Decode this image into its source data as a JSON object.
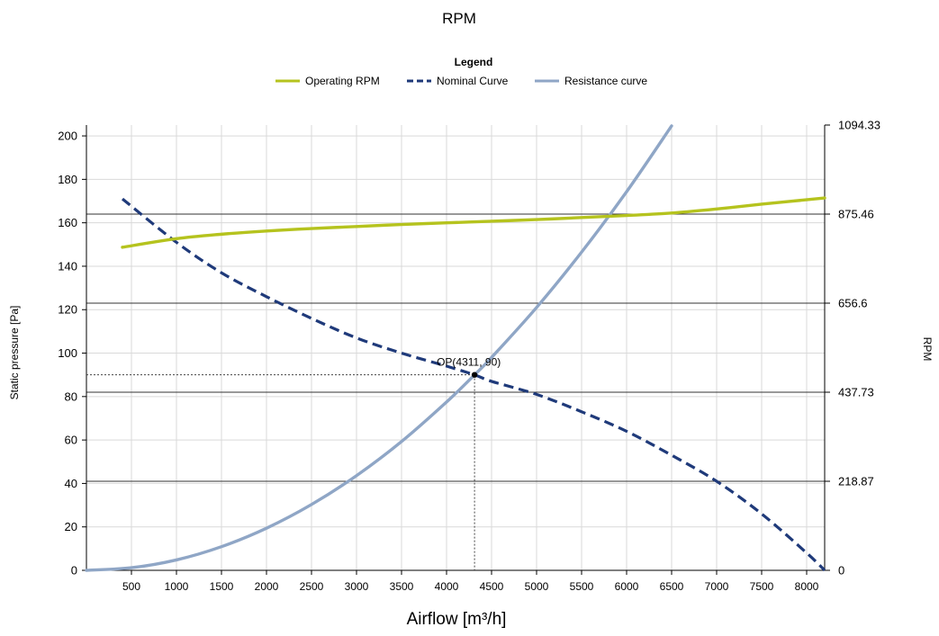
{
  "chart_data": {
    "type": "line",
    "title": "RPM",
    "legend": {
      "title": "Legend",
      "position": "top-center",
      "entries": [
        "Operating RPM",
        "Nominal Curve",
        "Resistance curve"
      ]
    },
    "xlabel": "Airflow [m³/h]",
    "ylabel": "Static pressure [Pa]",
    "y2label": "RPM",
    "xlim": [
      0,
      8200
    ],
    "ylim": [
      0,
      205
    ],
    "y2lim": [
      0,
      1094.33
    ],
    "x_ticks": [
      500,
      1000,
      1500,
      2000,
      2500,
      3000,
      3500,
      4000,
      4500,
      5000,
      5500,
      6000,
      6500,
      7000,
      7500,
      8000
    ],
    "y_ticks": [
      0,
      20,
      40,
      60,
      80,
      100,
      120,
      140,
      160,
      180,
      200
    ],
    "y2_ticks": [
      0,
      218.87,
      437.73,
      656.6,
      875.46,
      1094.33
    ],
    "grid": true,
    "operating_point": {
      "label": "OP(4311, 90)",
      "x": 4311,
      "y": 90
    },
    "series": [
      {
        "name": "Operating RPM",
        "axis": "right",
        "color": "#b5c31e",
        "style": "solid",
        "x": [
          400,
          1000,
          1500,
          2000,
          2500,
          3000,
          3500,
          4000,
          4500,
          5000,
          5500,
          6000,
          6500,
          7000,
          7500,
          8200
        ],
        "values": [
          794,
          815,
          826,
          834,
          840,
          845,
          850,
          854,
          858,
          862,
          867,
          872,
          878,
          888,
          900,
          915
        ]
      },
      {
        "name": "Nominal Curve",
        "axis": "left",
        "color": "#1f3a7a",
        "style": "dashed",
        "x": [
          400,
          1000,
          1500,
          2000,
          2500,
          3000,
          3500,
          4000,
          4311,
          4500,
          5000,
          5500,
          6000,
          6500,
          7000,
          7500,
          8000,
          8200
        ],
        "values": [
          171,
          151,
          137,
          126,
          116,
          107,
          100,
          94,
          90,
          87,
          81,
          73,
          64,
          53,
          41,
          26,
          8,
          0
        ]
      },
      {
        "name": "Resistance curve",
        "axis": "left",
        "color": "#8fa6c6",
        "style": "solid",
        "x": [
          0,
          500,
          1000,
          1500,
          2000,
          2500,
          3000,
          3500,
          4000,
          4311,
          4500,
          5000,
          5500,
          6000,
          6500
        ],
        "values": [
          0,
          1.2,
          4.8,
          10.9,
          19.4,
          30.3,
          43.6,
          59.3,
          77.5,
          90,
          98,
          121,
          146.5,
          174.3,
          204.6
        ]
      }
    ]
  }
}
